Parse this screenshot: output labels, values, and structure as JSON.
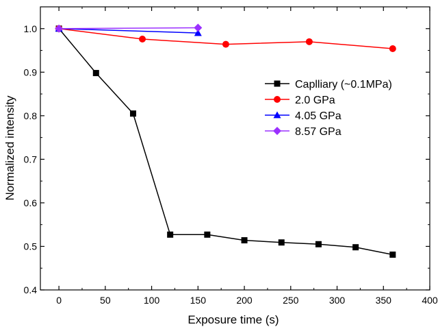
{
  "chart_data": {
    "type": "line",
    "title": "",
    "xlabel": "Exposure time (s)",
    "ylabel": "Normalized intensity",
    "xlim": [
      -20,
      400
    ],
    "ylim": [
      0.4,
      1.05
    ],
    "x_ticks": [
      0,
      50,
      100,
      150,
      200,
      250,
      300,
      350,
      400
    ],
    "y_ticks": [
      0.4,
      0.5,
      0.6,
      0.7,
      0.8,
      0.9,
      1.0
    ],
    "x_tick_labels": [
      "0",
      "50",
      "100",
      "150",
      "200",
      "250",
      "300",
      "350",
      "400"
    ],
    "y_tick_labels": [
      "0.4",
      "0.5",
      "0.6",
      "0.7",
      "0.8",
      "0.9",
      "1.0"
    ],
    "grid": false,
    "legend_position": "middle-right",
    "series": [
      {
        "name": "Caplliary (~0.1MPa)",
        "color": "#000000",
        "marker": "square",
        "x": [
          0,
          40,
          80,
          120,
          160,
          200,
          240,
          280,
          320,
          360
        ],
        "y": [
          1.0,
          0.898,
          0.805,
          0.527,
          0.527,
          0.514,
          0.509,
          0.505,
          0.498,
          0.481
        ]
      },
      {
        "name": "2.0 GPa",
        "color": "#ff0000",
        "marker": "circle",
        "x": [
          0,
          90,
          180,
          270,
          360
        ],
        "y": [
          1.0,
          0.976,
          0.964,
          0.97,
          0.954
        ]
      },
      {
        "name": "4.05 GPa",
        "color": "#0000ff",
        "marker": "triangle",
        "x": [
          0,
          150
        ],
        "y": [
          1.0,
          0.99
        ]
      },
      {
        "name": "8.57 GPa",
        "color": "#9b30ff",
        "marker": "diamond",
        "x": [
          0,
          150
        ],
        "y": [
          1.0,
          1.002
        ]
      }
    ]
  }
}
